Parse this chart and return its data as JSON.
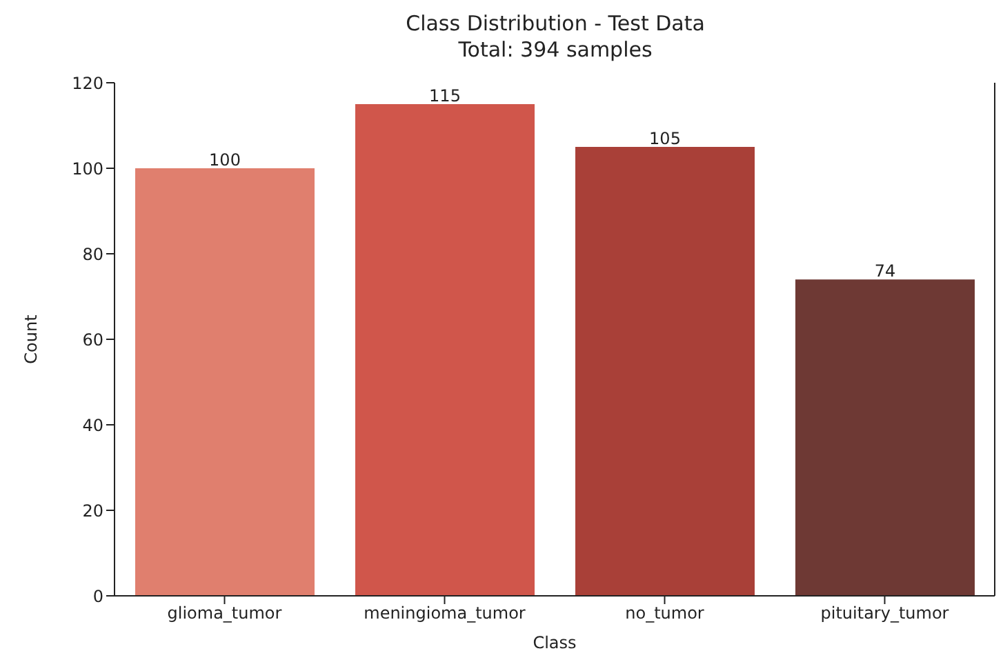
{
  "chart_data": {
    "type": "bar",
    "title": "Class Distribution - Test Data",
    "subtitle": "Total: 394 samples",
    "xlabel": "Class",
    "ylabel": "Count",
    "categories": [
      "glioma_tumor",
      "meningioma_tumor",
      "no_tumor",
      "pituitary_tumor"
    ],
    "values": [
      100,
      115,
      105,
      74
    ],
    "colors": [
      "#e07f6e",
      "#d0564b",
      "#a94038",
      "#6e3934"
    ],
    "ylim": [
      0,
      120
    ],
    "yticks": [
      0,
      20,
      40,
      60,
      80,
      100,
      120
    ],
    "grid": false,
    "data_labels": true
  }
}
